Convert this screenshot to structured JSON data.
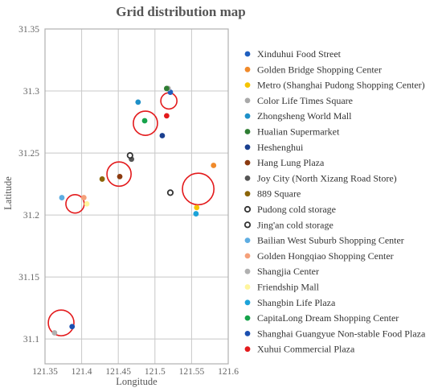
{
  "chart_data": {
    "type": "scatter",
    "title": "Grid distribution map",
    "xlabel": "Longitude",
    "ylabel": "Latitude",
    "xlim": [
      121.35,
      121.6
    ],
    "ylim": [
      31.08,
      31.35
    ],
    "x_ticks": [
      "121.35",
      "121.4",
      "121.45",
      "121.5",
      "121.55",
      "121.6"
    ],
    "y_ticks": [
      "31.1",
      "31.15",
      "31.2",
      "31.25",
      "31.3",
      "31.35"
    ],
    "grid": true,
    "legend_position": "right",
    "series": [
      {
        "name": "Xinduhui Food Street",
        "color": "#1f5fbf",
        "marker": "filled",
        "points": [
          [
            121.521,
            31.299
          ]
        ]
      },
      {
        "name": "Golden Bridge Shopping Center",
        "color": "#f08a2a",
        "marker": "filled",
        "points": [
          [
            121.58,
            31.24
          ]
        ]
      },
      {
        "name": "Metro (Shanghai Pudong Shopping Center)",
        "color": "#f5c400",
        "marker": "filled",
        "points": [
          [
            121.557,
            31.206
          ]
        ]
      },
      {
        "name": "Color Life Times Square",
        "color": "#a9a9a9",
        "marker": "filled",
        "points": [
          [
            121.518,
            31.302
          ]
        ]
      },
      {
        "name": "Zhongsheng World Mall",
        "color": "#1e90c8",
        "marker": "filled",
        "points": [
          [
            121.477,
            31.291
          ]
        ]
      },
      {
        "name": "Hualian Supermarket",
        "color": "#2e7d32",
        "marker": "filled",
        "points": [
          [
            121.516,
            31.302
          ]
        ]
      },
      {
        "name": "Heshenghui",
        "color": "#1a3f8f",
        "marker": "filled",
        "points": [
          [
            121.51,
            31.264
          ]
        ]
      },
      {
        "name": "Hang Lung Plaza",
        "color": "#8b3a0f",
        "marker": "filled",
        "points": [
          [
            121.452,
            31.231
          ]
        ]
      },
      {
        "name": "Joy City (North Xizang Road Store)",
        "color": "#555555",
        "marker": "filled",
        "points": [
          [
            121.468,
            31.245
          ]
        ]
      },
      {
        "name": "889 Square",
        "color": "#8b6508",
        "marker": "filled",
        "points": [
          [
            121.428,
            31.229
          ]
        ]
      },
      {
        "name": "Pudong cold storage",
        "color": "#333333",
        "marker": "hollow",
        "points": [
          [
            121.466,
            31.248
          ]
        ]
      },
      {
        "name": "Jing'an cold storage",
        "color": "#333333",
        "marker": "hollow",
        "points": [
          [
            121.521,
            31.218
          ]
        ]
      },
      {
        "name": "Bailian West Suburb Shopping Center",
        "color": "#5dade2",
        "marker": "filled",
        "points": [
          [
            121.373,
            31.214
          ]
        ]
      },
      {
        "name": "Golden Hongqiao Shopping Center",
        "color": "#f5a07a",
        "marker": "filled",
        "points": [
          [
            121.403,
            31.214
          ]
        ]
      },
      {
        "name": "Shangjia Center",
        "color": "#b0b0b0",
        "marker": "filled",
        "points": [
          [
            121.363,
            31.105
          ]
        ]
      },
      {
        "name": "Friendship Mall",
        "color": "#fff59d",
        "marker": "filled",
        "points": [
          [
            121.407,
            31.209
          ]
        ]
      },
      {
        "name": "Shangbin Life Plaza",
        "color": "#1ca3d9",
        "marker": "filled",
        "points": [
          [
            121.556,
            31.201
          ]
        ]
      },
      {
        "name": "CapitaLong Dream Shopping Center",
        "color": "#16a34a",
        "marker": "filled",
        "points": [
          [
            121.486,
            31.276
          ]
        ]
      },
      {
        "name": "Shanghai Guangyue Non-stable Food Plaza",
        "color": "#1b4fb0",
        "marker": "filled",
        "points": [
          [
            121.387,
            31.11
          ]
        ]
      },
      {
        "name": "Xuhui Commercial Plaza",
        "color": "#e31a1c",
        "marker": "filled",
        "points": [
          [
            121.516,
            31.28
          ]
        ]
      }
    ],
    "grid_circles": [
      {
        "center": [
          121.372,
          31.113
        ],
        "radius_x": 0.0175
      },
      {
        "center": [
          121.391,
          31.209
        ],
        "radius_x": 0.0125
      },
      {
        "center": [
          121.451,
          31.233
        ],
        "radius_x": 0.0165
      },
      {
        "center": [
          121.487,
          31.274
        ],
        "radius_x": 0.0165
      },
      {
        "center": [
          121.519,
          31.292
        ],
        "radius_x": 0.011
      },
      {
        "center": [
          121.559,
          31.221
        ],
        "radius_x": 0.0215
      }
    ],
    "circle_color": "#e31a1c"
  }
}
